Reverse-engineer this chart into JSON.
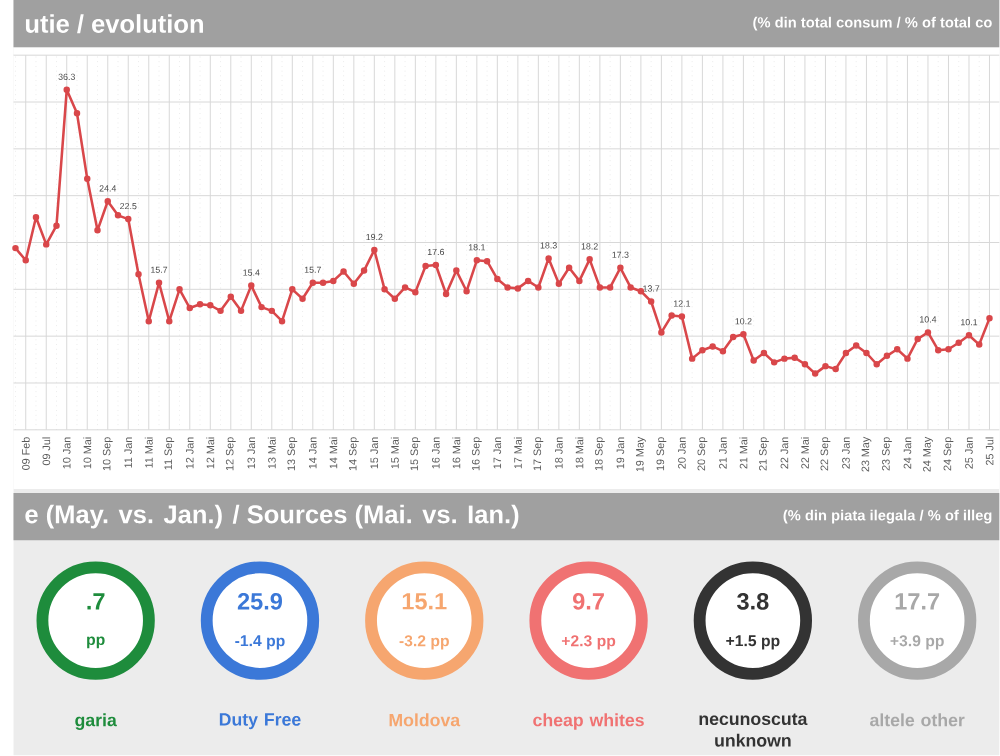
{
  "chart_data": [
    {
      "type": "line",
      "title": "utie / evolution",
      "subtitle": "(% din total consum / % of total co",
      "categories": [
        null,
        "09 Feb",
        null,
        "09 Jul",
        null,
        "10 Jan",
        null,
        "10 Mai",
        null,
        "10 Sep",
        null,
        "11 Jan",
        null,
        "11 Mai",
        null,
        "11 Sep",
        null,
        "12 Jan",
        null,
        "12 Mai",
        null,
        "12 Sep",
        null,
        "13 Jan",
        null,
        "13 Mai",
        null,
        "13 Sep",
        null,
        "14 Jan",
        null,
        "14 Mai",
        null,
        "14 Sep",
        null,
        "15 Jan",
        null,
        "15 Mai",
        null,
        "15 Sep",
        null,
        "16 Jan",
        null,
        "16 Mai",
        null,
        "16 Sep",
        null,
        "17 Jan",
        null,
        "17 Mai",
        null,
        "17 Sep",
        null,
        "18 Jan",
        null,
        "18 Mai",
        null,
        "18 Sep",
        null,
        "19 Jan",
        null,
        "19 May",
        null,
        "19 Sep",
        null,
        "20 Jan",
        null,
        "20 Sep",
        null,
        "21 Jan",
        null,
        "21 Mai",
        null,
        "21 Sep",
        null,
        "22 Jan",
        null,
        "22 Mai",
        null,
        "22 Sep",
        null,
        "23 Jan",
        null,
        "23 May",
        null,
        "23 Sep",
        null,
        "24 Jan",
        null,
        "24 May",
        null,
        "24 Sep",
        null,
        "25 Jan",
        null,
        "25 Jul"
      ],
      "values": [
        19.4,
        18.1,
        22.7,
        19.8,
        21.8,
        36.3,
        33.8,
        26.8,
        21.3,
        24.4,
        22.9,
        22.5,
        16.6,
        11.6,
        15.7,
        11.6,
        15.0,
        13.0,
        13.4,
        13.3,
        12.7,
        14.2,
        12.7,
        15.4,
        13.1,
        12.7,
        11.6,
        15.0,
        14.0,
        15.7,
        15.7,
        15.9,
        16.9,
        15.6,
        17.0,
        19.2,
        15.0,
        14.0,
        15.2,
        14.7,
        17.5,
        17.6,
        14.5,
        17.0,
        14.8,
        18.1,
        18.0,
        16.1,
        15.2,
        15.1,
        15.9,
        15.2,
        18.3,
        15.6,
        17.3,
        15.9,
        18.2,
        15.2,
        15.2,
        17.3,
        15.2,
        14.8,
        13.7,
        10.4,
        12.2,
        12.1,
        7.6,
        8.5,
        8.9,
        8.4,
        9.9,
        10.2,
        7.4,
        8.2,
        7.2,
        7.6,
        7.7,
        7.0,
        6.0,
        6.8,
        6.5,
        8.2,
        9.0,
        8.2,
        7.0,
        7.9,
        8.6,
        7.6,
        9.7,
        10.4,
        8.5,
        8.6,
        9.3,
        10.1,
        9.1,
        11.9
      ],
      "value_labels": [
        null,
        null,
        null,
        null,
        null,
        "36.3",
        null,
        null,
        null,
        "24.4",
        null,
        "22.5",
        null,
        null,
        "15.7",
        null,
        null,
        null,
        null,
        null,
        null,
        null,
        null,
        "15.4",
        null,
        null,
        null,
        null,
        null,
        "15.7",
        null,
        null,
        null,
        null,
        null,
        "19.2",
        null,
        null,
        null,
        null,
        null,
        "17.6",
        null,
        null,
        null,
        "18.1",
        null,
        null,
        null,
        null,
        null,
        null,
        "18.3",
        null,
        null,
        null,
        "18.2",
        null,
        null,
        "17.3",
        null,
        null,
        "13.7",
        null,
        null,
        "12.1",
        null,
        null,
        null,
        null,
        null,
        "10.2",
        null,
        null,
        null,
        null,
        null,
        null,
        null,
        null,
        null,
        null,
        null,
        null,
        null,
        null,
        null,
        null,
        null,
        "10.4",
        null,
        null,
        null,
        "10.1",
        null,
        null
      ],
      "color": "#d9474a",
      "ylim": [
        0,
        40
      ],
      "yticks": [
        {
          "value": 0,
          "label": null
        },
        {
          "value": 5,
          "label": null
        },
        {
          "value": 10,
          "label": null
        },
        {
          "value": 15,
          "label": null
        },
        {
          "value": 20,
          "label": null
        },
        {
          "value": 25,
          "label": null
        },
        {
          "value": 30,
          "label": null
        },
        {
          "value": 35,
          "label": null
        },
        {
          "value": 40,
          "label": null
        }
      ],
      "grid": true,
      "marker": "circle",
      "line_style": "solid"
    },
    {
      "type": "other",
      "title": "e (May. vs. Jan.) / Sources (Mai. vs. Ian.)",
      "subtitle": "(% din piata ilegala / % of illeg",
      "categories": [
        "garia",
        "Duty Free",
        "Moldova",
        "cheap whites",
        "necunoscuta unknown",
        "altele other"
      ],
      "value_labels": [
        ".7",
        "25.9",
        "15.1",
        "9.7",
        "3.8",
        "17.7"
      ],
      "annotations": [
        "pp",
        "-1.4 pp",
        "-3.2 pp",
        "+2.3 pp",
        "+1.5 pp",
        "+3.9 pp"
      ],
      "colors": [
        "#1e8c3c",
        "#3b78d8",
        "#f6a66f",
        "#f07272",
        "#333333",
        "#a8a8a8"
      ]
    }
  ]
}
